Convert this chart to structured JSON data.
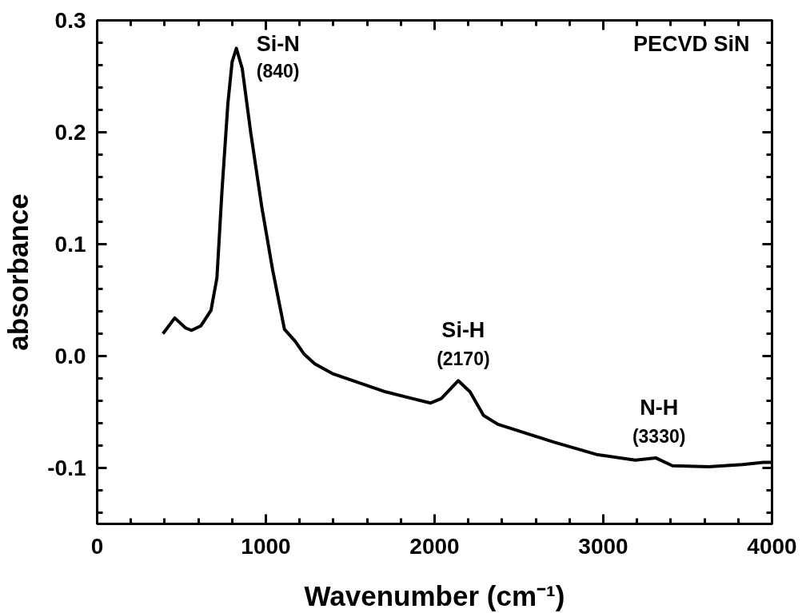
{
  "chart_data": {
    "type": "line",
    "xlabel": "Wavenumber (cm⁻¹)",
    "ylabel": "absorbance",
    "xlim": [
      0,
      4000
    ],
    "ylim": [
      -0.15,
      0.3
    ],
    "xticks": [
      0,
      1000,
      2000,
      3000,
      4000
    ],
    "yticks": [
      {
        "value": -0.1,
        "label": "-0.1"
      },
      {
        "value": 0,
        "label": "0.0"
      },
      0.1,
      0.2,
      0.3
    ],
    "grid": false,
    "line_style": "solid",
    "marker": "none",
    "series": [
      {
        "color": "#000000",
        "x": [
          390,
          460,
          525,
          560,
          615,
          675,
          710,
          740,
          775,
          800,
          825,
          860,
          910,
          975,
          1040,
          1110,
          1175,
          1225,
          1290,
          1400,
          1710,
          1975,
          2040,
          2140,
          2210,
          2290,
          2375,
          2710,
          2960,
          3190,
          3310,
          3410,
          3625,
          3825,
          3950,
          4000
        ],
        "values": [
          0.02,
          0.034,
          0.025,
          0.023,
          0.027,
          0.041,
          0.07,
          0.148,
          0.226,
          0.263,
          0.275,
          0.257,
          0.2,
          0.134,
          0.077,
          0.024,
          0.013,
          0.002,
          -0.007,
          -0.016,
          -0.032,
          -0.042,
          -0.038,
          -0.022,
          -0.032,
          -0.053,
          -0.061,
          -0.077,
          -0.088,
          -0.093,
          -0.091,
          -0.098,
          -0.099,
          -0.097,
          -0.095,
          -0.095
        ]
      }
    ],
    "annotations": [
      {
        "text": "Si-N\n(840)",
        "x": 840,
        "y": 0.275
      },
      {
        "text": "Si-H\n(2170)",
        "x": 2170,
        "y": -0.022
      },
      {
        "text": "N-H\n(3330)",
        "x": 3330,
        "y": -0.091
      },
      "PECVD SiN"
    ]
  }
}
